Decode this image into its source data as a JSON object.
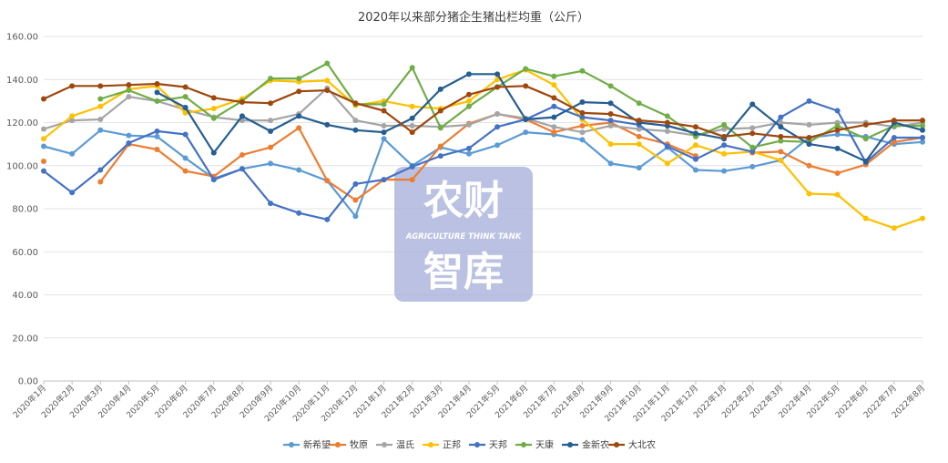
{
  "chart_data": {
    "type": "line",
    "title": "2020年以来部分猪企生猪出栏均重（公斤）",
    "ylim": [
      0,
      160
    ],
    "yticks": [
      "0.00",
      "20.00",
      "40.00",
      "60.00",
      "80.00",
      "100.00",
      "120.00",
      "140.00",
      "160.00"
    ],
    "grid": "horizontal",
    "legend_position": "bottom",
    "categories": [
      "2020年1月",
      "2020年2月",
      "2020年3月",
      "2020年4月",
      "2020年5月",
      "2020年6月",
      "2020年7月",
      "2020年8月",
      "2020年9月",
      "2020年10月",
      "2020年11月",
      "2020年12月",
      "2021年1月",
      "2021年2月",
      "2021年3月",
      "2021年4月",
      "2021年5月",
      "2021年6月",
      "2021年7月",
      "2021年8月",
      "2021年9月",
      "2021年10月",
      "2021年11月",
      "2021年12月",
      "2022年1月",
      "2022年2月",
      "2022年3月",
      "2022年4月",
      "2022年5月",
      "2022年6月",
      "2022年7月",
      "2022年8月"
    ],
    "series": [
      {
        "name": "新希望",
        "color": "#5b9bd5",
        "values": [
          109,
          105.5,
          116.5,
          114,
          113.5,
          103.5,
          94,
          98.5,
          101,
          98,
          93,
          76.5,
          112.5,
          100,
          108.5,
          105.5,
          109.5,
          115.5,
          114.5,
          112,
          101,
          99,
          108.5,
          98,
          97.5,
          99.5,
          102.5,
          113,
          114.5,
          113.5,
          110,
          111
        ]
      },
      {
        "name": "牧原",
        "color": "#ed7d31",
        "values": [
          102,
          null,
          92.5,
          110,
          107.5,
          97.5,
          95,
          105,
          108.5,
          117.5,
          93,
          84,
          93.5,
          93.5,
          109,
          119.5,
          124,
          121.5,
          115.5,
          118.5,
          120,
          113.5,
          110,
          104.5,
          null,
          106,
          106.5,
          100,
          96.5,
          100.5,
          111,
          113
        ]
      },
      {
        "name": "温氏",
        "color": "#a5a5a5",
        "values": [
          117,
          121,
          121.5,
          132,
          130,
          126,
          122.5,
          121,
          121,
          124,
          136,
          121,
          118.5,
          118.5,
          118,
          119,
          124,
          122,
          118,
          115.5,
          118.5,
          117,
          116,
          114,
          117,
          117.5,
          120,
          119,
          120,
          120,
          118,
          120
        ]
      },
      {
        "name": "正邦",
        "color": "#ffc000",
        "values": [
          112.5,
          123,
          127.5,
          135.5,
          137,
          124.5,
          126.5,
          131,
          139.5,
          139,
          139.5,
          128,
          130,
          127.5,
          126.5,
          130,
          140,
          144.5,
          137.5,
          121.5,
          110,
          110,
          101,
          109.5,
          105.5,
          106.5,
          102.5,
          87,
          86.5,
          75.5,
          71,
          75.5
        ]
      },
      {
        "name": "天邦",
        "color": "#4472c4",
        "values": [
          97.5,
          87.5,
          98,
          110.5,
          116,
          114.5,
          93.5,
          98.5,
          82.5,
          78,
          75,
          91.5,
          93.5,
          99.5,
          104.5,
          108,
          118,
          121.5,
          127.5,
          122.5,
          121,
          119,
          109,
          103,
          109.5,
          106.5,
          122.5,
          130,
          125.5,
          101.5,
          113,
          113
        ]
      },
      {
        "name": "天康",
        "color": "#70ad47",
        "values": [
          null,
          null,
          131,
          135,
          130,
          132,
          122,
          130,
          140.5,
          140.5,
          147.5,
          128.5,
          128.5,
          145.5,
          117.5,
          127.5,
          136.5,
          145,
          141.5,
          144,
          137,
          129,
          123,
          113.5,
          119,
          108.5,
          111.5,
          111,
          118.5,
          112.5,
          118.5,
          118.5
        ]
      },
      {
        "name": "金新农",
        "color": "#255e91",
        "values": [
          null,
          null,
          null,
          null,
          134,
          127,
          106,
          123,
          116,
          123,
          119,
          116.5,
          115.5,
          122,
          135.5,
          142.5,
          142.5,
          121.5,
          122.5,
          129.5,
          129,
          120,
          118.5,
          115,
          112.5,
          128.5,
          118,
          110,
          108,
          102,
          120,
          116.5
        ]
      },
      {
        "name": "大北农",
        "color": "#9e480e",
        "values": [
          131,
          137,
          137,
          137.5,
          138,
          136.5,
          131.5,
          129.5,
          129,
          134.5,
          135,
          129,
          125.5,
          115.5,
          125.5,
          133,
          136.5,
          137,
          131.5,
          124.5,
          124,
          121,
          120,
          118,
          113.5,
          115,
          113.5,
          113,
          116.5,
          119,
          121,
          121
        ]
      }
    ]
  },
  "watermark": {
    "line1": "农财",
    "line2": "AGRICULTURE  THINK TANK",
    "line3": "智库"
  }
}
